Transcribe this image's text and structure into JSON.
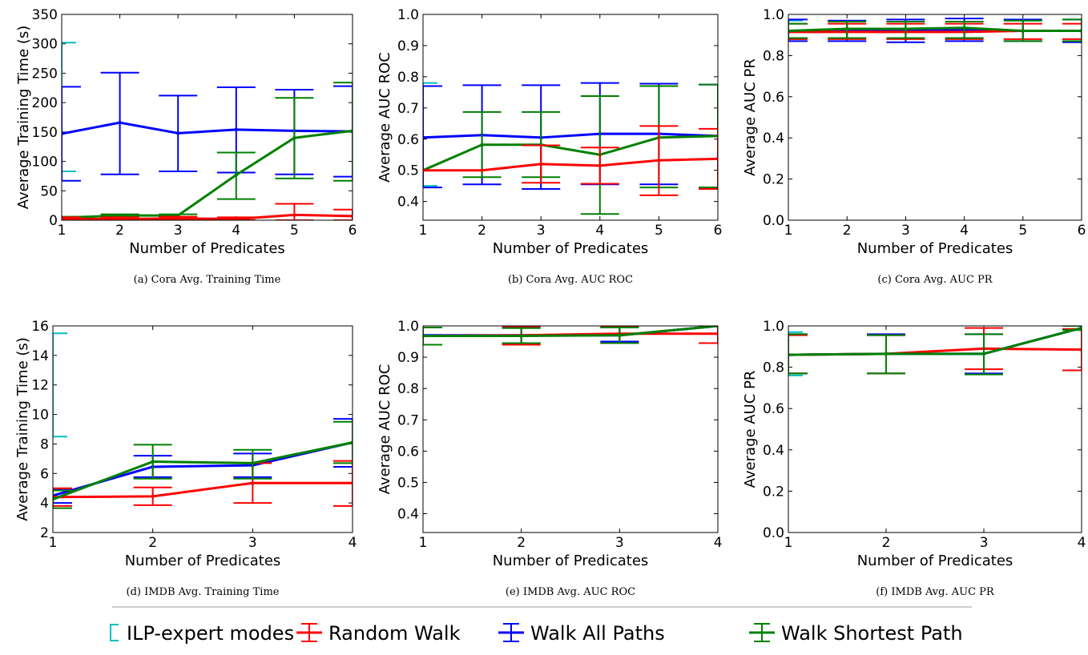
{
  "legend": [
    {
      "label": "ILP-expert modes",
      "color": "#00bfbf",
      "style": "bracket"
    },
    {
      "label": "Random Walk",
      "color": "#ff0000",
      "style": "errorbar"
    },
    {
      "label": "Walk All Paths",
      "color": "#0000ff",
      "style": "errorbar"
    },
    {
      "label": "Walk Shortest Path",
      "color": "#008000",
      "style": "errorbar"
    }
  ],
  "chart_data": [
    {
      "id": "a",
      "type": "line",
      "caption": "(a)  Cora Avg. Training Time",
      "xlabel": "Number of Predicates",
      "ylabel": "Average Training Time (s)",
      "xlim": [
        1,
        6
      ],
      "ylim": [
        0,
        350
      ],
      "xticks": [
        1,
        2,
        3,
        4,
        5,
        6
      ],
      "yticks": [
        0,
        50,
        100,
        150,
        200,
        250,
        300,
        350
      ],
      "ytick_labels": [
        "0",
        "50",
        "100",
        "150",
        "200",
        "250",
        "300",
        "350"
      ],
      "ilp": {
        "x": 1,
        "low": 83,
        "high": 302
      },
      "series": [
        {
          "name": "Walk All Paths",
          "x": [
            1,
            2,
            3,
            4,
            5,
            6
          ],
          "y": [
            147,
            166,
            148,
            154,
            152,
            151
          ],
          "err_low": [
            67,
            78,
            83,
            81,
            78,
            74
          ],
          "err_high": [
            227,
            251,
            212,
            226,
            222,
            228
          ]
        },
        {
          "name": "Walk Shortest Path",
          "x": [
            1,
            2,
            3,
            4,
            5,
            6
          ],
          "y": [
            4,
            8,
            8,
            77,
            140,
            152
          ],
          "err_low": [
            2,
            5,
            5,
            36,
            71,
            67
          ],
          "err_high": [
            6,
            10,
            10,
            115,
            208,
            234
          ]
        },
        {
          "name": "Random Walk",
          "x": [
            1,
            2,
            3,
            4,
            5,
            6
          ],
          "y": [
            2,
            2,
            3,
            2,
            9,
            7
          ],
          "err_low": [
            0,
            0,
            0,
            0,
            0,
            0
          ],
          "err_high": [
            5,
            5,
            6,
            5,
            28,
            18
          ]
        }
      ]
    },
    {
      "id": "b",
      "type": "line",
      "caption": "(b)  Cora Avg. AUC ROC",
      "xlabel": "Number of Predicates",
      "ylabel": "Average AUC ROC",
      "xlim": [
        1,
        6
      ],
      "ylim": [
        0.34,
        1.0
      ],
      "xticks": [
        1,
        2,
        3,
        4,
        5,
        6
      ],
      "yticks": [
        0.4,
        0.5,
        0.6,
        0.7,
        0.8,
        0.9,
        1.0
      ],
      "ytick_labels": [
        "0.4",
        "0.5",
        "0.6",
        "0.7",
        "0.8",
        "0.9",
        "1.0"
      ],
      "ilp": {
        "x": 1,
        "low": 0.45,
        "high": 0.78
      },
      "series": [
        {
          "name": "Walk All Paths",
          "x": [
            1,
            2,
            3,
            4,
            5,
            6
          ],
          "y": [
            0.605,
            0.613,
            0.605,
            0.617,
            0.617,
            0.61
          ],
          "err_low": [
            0.445,
            0.455,
            0.44,
            0.455,
            0.455,
            0.445
          ],
          "err_high": [
            0.77,
            0.773,
            0.773,
            0.78,
            0.778,
            0.775
          ]
        },
        {
          "name": "Walk Shortest Path",
          "x": [
            1,
            2,
            3,
            4,
            5,
            6
          ],
          "y": [
            0.5,
            0.582,
            0.582,
            0.55,
            0.605,
            0.61
          ],
          "err_low": [
            0.5,
            0.478,
            0.478,
            0.36,
            0.445,
            0.445
          ],
          "err_high": [
            0.5,
            0.687,
            0.687,
            0.738,
            0.77,
            0.775
          ]
        },
        {
          "name": "Random Walk",
          "x": [
            1,
            2,
            3,
            4,
            5,
            6
          ],
          "y": [
            0.5,
            0.5,
            0.52,
            0.515,
            0.532,
            0.537
          ],
          "err_low": [
            0.5,
            0.5,
            0.46,
            0.457,
            0.42,
            0.44
          ],
          "err_high": [
            0.5,
            0.5,
            0.58,
            0.573,
            0.642,
            0.633
          ]
        }
      ]
    },
    {
      "id": "c",
      "type": "line",
      "caption": "(c)  Cora Avg. AUC PR",
      "xlabel": "Number of Predicates",
      "ylabel": "Average AUC PR",
      "xlim": [
        1,
        6
      ],
      "ylim": [
        0,
        1.0
      ],
      "xticks": [
        1,
        2,
        3,
        4,
        5,
        6
      ],
      "yticks": [
        0,
        0.2,
        0.4,
        0.6,
        0.8,
        1.0
      ],
      "ytick_labels": [
        "0.0",
        "0.2",
        "0.4",
        "0.6",
        "0.8",
        "1.0"
      ],
      "ilp": {
        "x": 1,
        "low": 0.88,
        "high": 0.97
      },
      "series": [
        {
          "name": "Walk All Paths",
          "x": [
            1,
            2,
            3,
            4,
            5,
            6
          ],
          "y": [
            0.92,
            0.92,
            0.92,
            0.925,
            0.92,
            0.92
          ],
          "err_low": [
            0.87,
            0.87,
            0.865,
            0.87,
            0.87,
            0.865
          ],
          "err_high": [
            0.975,
            0.97,
            0.975,
            0.98,
            0.975,
            0.975
          ]
        },
        {
          "name": "Random Walk",
          "x": [
            1,
            2,
            3,
            4,
            5,
            6
          ],
          "y": [
            0.915,
            0.915,
            0.915,
            0.915,
            0.92,
            0.92
          ],
          "err_low": [
            0.88,
            0.88,
            0.88,
            0.88,
            0.88,
            0.88
          ],
          "err_high": [
            0.955,
            0.955,
            0.955,
            0.955,
            0.955,
            0.955
          ]
        },
        {
          "name": "Walk Shortest Path",
          "x": [
            1,
            2,
            3,
            4,
            5,
            6
          ],
          "y": [
            0.92,
            0.93,
            0.93,
            0.935,
            0.92,
            0.92
          ],
          "err_low": [
            0.885,
            0.885,
            0.885,
            0.885,
            0.87,
            0.87
          ],
          "err_high": [
            0.955,
            0.965,
            0.965,
            0.965,
            0.97,
            0.975
          ]
        }
      ]
    },
    {
      "id": "d",
      "type": "line",
      "caption": "(d)  IMDB Avg. Training Time",
      "xlabel": "Number of Predicates",
      "ylabel": "Average Training Time (s)",
      "xlim": [
        1,
        4
      ],
      "ylim": [
        2,
        16
      ],
      "xticks": [
        1,
        2,
        3,
        4
      ],
      "yticks": [
        2,
        4,
        6,
        8,
        10,
        12,
        14,
        16
      ],
      "ytick_labels": [
        "2",
        "4",
        "6",
        "8",
        "10",
        "12",
        "14",
        "16"
      ],
      "ilp": {
        "x": 1,
        "low": 8.5,
        "high": 15.5
      },
      "series": [
        {
          "name": "Walk All Paths",
          "x": [
            1,
            2,
            3,
            4
          ],
          "y": [
            4.5,
            6.45,
            6.55,
            8.1
          ],
          "err_low": [
            4.0,
            5.75,
            5.75,
            6.45
          ],
          "err_high": [
            4.95,
            7.2,
            7.35,
            9.7
          ]
        },
        {
          "name": "Random Walk",
          "x": [
            1,
            2,
            3,
            4
          ],
          "y": [
            4.4,
            4.45,
            5.35,
            5.35
          ],
          "err_low": [
            3.8,
            3.85,
            4.0,
            3.8
          ],
          "err_high": [
            5.0,
            5.05,
            6.7,
            6.85
          ]
        },
        {
          "name": "Walk Shortest Path",
          "x": [
            1,
            2,
            3,
            4
          ],
          "y": [
            4.25,
            6.8,
            6.7,
            8.1
          ],
          "err_low": [
            3.65,
            5.65,
            5.65,
            6.7
          ],
          "err_high": [
            4.85,
            7.95,
            7.6,
            9.5
          ]
        }
      ]
    },
    {
      "id": "e",
      "type": "line",
      "caption": "(e)  IMDB Avg. AUC ROC",
      "xlabel": "Number of Predicates",
      "ylabel": "Average AUC ROC",
      "xlim": [
        1,
        4
      ],
      "ylim": [
        0.34,
        1.0
      ],
      "xticks": [
        1,
        2,
        3,
        4
      ],
      "yticks": [
        0.4,
        0.5,
        0.6,
        0.7,
        0.8,
        0.9,
        1.0
      ],
      "ytick_labels": [
        "0.4",
        "0.5",
        "0.6",
        "0.7",
        "0.8",
        "0.9",
        "1.0"
      ],
      "ilp": {
        "x": 1,
        "low": 0.94,
        "high": 0.995
      },
      "series": [
        {
          "name": "Walk All Paths",
          "x": [
            1,
            2,
            3,
            4
          ],
          "y": [
            0.97,
            0.97,
            0.97,
            1.0
          ],
          "err_low": [
            0.94,
            0.945,
            0.95,
            1.0
          ],
          "err_high": [
            0.995,
            0.995,
            0.995,
            1.0
          ]
        },
        {
          "name": "Random Walk",
          "x": [
            1,
            2,
            3,
            4
          ],
          "y": [
            0.968,
            0.97,
            0.975,
            0.975
          ],
          "err_low": [
            0.94,
            0.94,
            0.945,
            0.945
          ],
          "err_high": [
            0.995,
            0.998,
            1.0,
            1.0
          ]
        },
        {
          "name": "Walk Shortest Path",
          "x": [
            1,
            2,
            3,
            4
          ],
          "y": [
            0.968,
            0.968,
            0.97,
            1.0
          ],
          "err_low": [
            0.94,
            0.945,
            0.945,
            1.0
          ],
          "err_high": [
            0.995,
            0.993,
            0.995,
            1.0
          ]
        }
      ]
    },
    {
      "id": "f",
      "type": "line",
      "caption": "(f)  IMDB Avg. AUC PR",
      "xlabel": "Number of Predicates",
      "ylabel": "Average AUC PR",
      "xlim": [
        1,
        4
      ],
      "ylim": [
        0,
        1.0
      ],
      "xticks": [
        1,
        2,
        3,
        4
      ],
      "yticks": [
        0,
        0.2,
        0.4,
        0.6,
        0.8,
        1.0
      ],
      "ytick_labels": [
        "0.0",
        "0.2",
        "0.4",
        "0.6",
        "0.8",
        "1.0"
      ],
      "ilp": {
        "x": 1,
        "low": 0.76,
        "high": 0.97
      },
      "series": [
        {
          "name": "Walk All Paths",
          "x": [
            1,
            2,
            3,
            4
          ],
          "y": [
            0.86,
            0.865,
            0.865,
            0.99
          ],
          "err_low": [
            0.77,
            0.77,
            0.77,
            0.98
          ],
          "err_high": [
            0.96,
            0.96,
            0.96,
            1.0
          ]
        },
        {
          "name": "Random Walk",
          "x": [
            1,
            2,
            3,
            4
          ],
          "y": [
            0.86,
            0.865,
            0.89,
            0.885
          ],
          "err_low": [
            0.77,
            0.77,
            0.79,
            0.785
          ],
          "err_high": [
            0.955,
            0.955,
            0.99,
            0.985
          ]
        },
        {
          "name": "Walk Shortest Path",
          "x": [
            1,
            2,
            3,
            4
          ],
          "y": [
            0.86,
            0.865,
            0.865,
            0.99
          ],
          "err_low": [
            0.77,
            0.77,
            0.765,
            0.98
          ],
          "err_high": [
            0.96,
            0.955,
            0.96,
            1.0
          ]
        }
      ]
    }
  ]
}
